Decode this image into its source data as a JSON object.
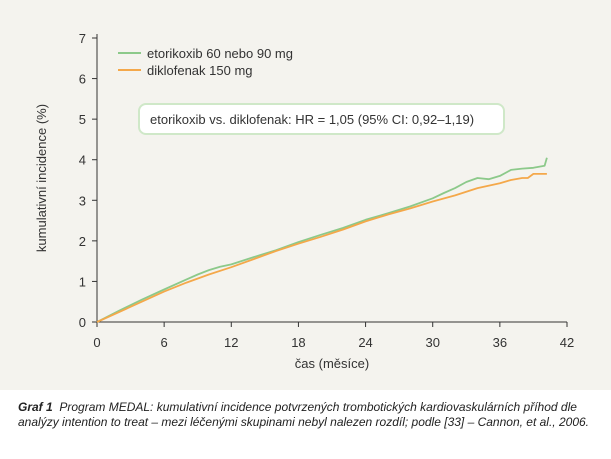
{
  "chart_data": {
    "type": "line",
    "title": "",
    "xlabel": "čas (měsíce)",
    "ylabel": "kumulativní incidence (%)",
    "xlim": [
      0,
      42
    ],
    "ylim": [
      0,
      7
    ],
    "xticks": [
      0,
      6,
      12,
      18,
      24,
      30,
      36,
      42
    ],
    "yticks": [
      0,
      1,
      2,
      3,
      4,
      5,
      6,
      7
    ],
    "grid": false,
    "legend_position": "top-left",
    "annotation": "etorikoxib vs. diklofenak: HR = 1,05 (95% CI: 0,92–1,19)",
    "series": [
      {
        "name": "etorikoxib 60 nebo 90 mg",
        "color": "#8cc98a",
        "x": [
          0,
          2,
          4,
          6,
          8,
          9,
          10,
          11,
          12,
          14,
          16,
          18,
          20,
          22,
          24,
          26,
          28,
          30,
          31,
          32,
          33,
          34,
          35,
          36,
          37,
          38,
          39,
          40,
          40.2
        ],
        "y": [
          0,
          0.28,
          0.55,
          0.8,
          1.05,
          1.17,
          1.28,
          1.36,
          1.42,
          1.6,
          1.77,
          1.97,
          2.15,
          2.32,
          2.52,
          2.68,
          2.85,
          3.05,
          3.18,
          3.3,
          3.45,
          3.55,
          3.52,
          3.6,
          3.75,
          3.78,
          3.8,
          3.85,
          4.05
        ]
      },
      {
        "name": "diklofenak 150 mg",
        "color": "#f4a84a",
        "x": [
          0,
          2,
          4,
          6,
          8,
          10,
          12,
          14,
          16,
          18,
          20,
          22,
          24,
          26,
          28,
          30,
          32,
          34,
          36,
          37,
          38,
          38.5,
          39,
          40,
          40.2
        ],
        "y": [
          0,
          0.25,
          0.5,
          0.75,
          0.97,
          1.17,
          1.35,
          1.55,
          1.75,
          1.93,
          2.1,
          2.28,
          2.48,
          2.65,
          2.8,
          2.97,
          3.12,
          3.3,
          3.42,
          3.5,
          3.55,
          3.55,
          3.65,
          3.65,
          3.65
        ]
      }
    ]
  },
  "caption": {
    "label": "Graf 1",
    "text": "Program MEDAL: kumulativní incidence potvrzených trombotických kardiovaskulárních příhod dle analýzy intention to treat – mezi léčenými skupinami nebyl nalezen rozdíl; podle [33] – Cannon, et al., 2006."
  }
}
